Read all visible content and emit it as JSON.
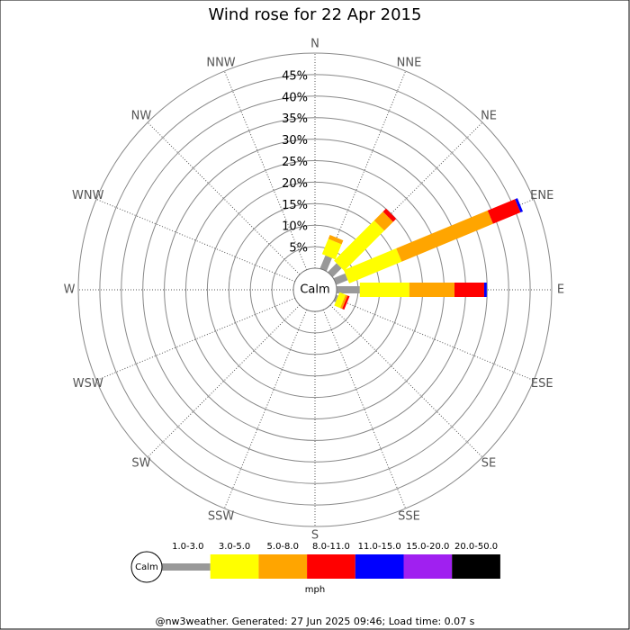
{
  "chart_data": {
    "type": "windrose",
    "title": "Wind rose for 22 Apr 2015",
    "directions": [
      "N",
      "NNE",
      "NE",
      "ENE",
      "E",
      "ESE",
      "SE",
      "SSE",
      "S",
      "SSW",
      "SW",
      "WSW",
      "W",
      "WNW",
      "NW",
      "NNW"
    ],
    "series": [
      {
        "name": "1.0-3.0",
        "color": "#999999",
        "values": [
          0,
          3.3,
          2.9,
          2.9,
          5.4,
          0.5,
          0,
          0,
          0,
          0,
          0,
          0,
          0,
          0,
          0,
          0
        ]
      },
      {
        "name": "3.0-5.0",
        "color": "#ffff00",
        "values": [
          0,
          3.8,
          13.2,
          13.2,
          11.5,
          1.5,
          0,
          0,
          0,
          0,
          0,
          0,
          0,
          0,
          0,
          0
        ]
      },
      {
        "name": "5.0-8.0",
        "color": "#ffa500",
        "values": [
          0,
          1.0,
          2.9,
          23.0,
          10.5,
          0.5,
          0,
          0,
          0,
          0,
          0,
          0,
          0,
          0,
          0,
          0
        ]
      },
      {
        "name": "8.0-11.0",
        "color": "#ff0000",
        "values": [
          0,
          0,
          1.0,
          6.9,
          6.9,
          0.5,
          0,
          0,
          0,
          0,
          0,
          0,
          0,
          0,
          0,
          0
        ]
      },
      {
        "name": "11.0-15.0",
        "color": "#0000ff",
        "values": [
          0,
          0,
          0,
          0.6,
          0.6,
          0,
          0,
          0,
          0,
          0,
          0,
          0,
          0,
          0,
          0,
          0
        ]
      },
      {
        "name": "15.0-20.0",
        "color": "#a020f0",
        "values": [
          0,
          0,
          0,
          0,
          0,
          0,
          0,
          0,
          0,
          0,
          0,
          0,
          0,
          0,
          0,
          0
        ]
      },
      {
        "name": "20.0-50.0",
        "color": "#000000",
        "values": [
          0,
          0,
          0,
          0,
          0,
          0,
          0,
          0,
          0,
          0,
          0,
          0,
          0,
          0,
          0,
          0
        ]
      }
    ],
    "rlim": [
      0,
      50
    ],
    "rticks": [
      {
        "value": 5,
        "label": "5%"
      },
      {
        "value": 10,
        "label": "10%"
      },
      {
        "value": 15,
        "label": "15%"
      },
      {
        "value": 20,
        "label": "20%"
      },
      {
        "value": 25,
        "label": "25%"
      },
      {
        "value": 30,
        "label": "30%"
      },
      {
        "value": 35,
        "label": "35%"
      },
      {
        "value": 40,
        "label": "40%"
      },
      {
        "value": 45,
        "label": "45%"
      }
    ],
    "calm_label": "Calm",
    "unit": "mph",
    "footer": "@nw3weather. Generated: 27 Jun 2025 09:46; Load time: 0.07 s"
  }
}
